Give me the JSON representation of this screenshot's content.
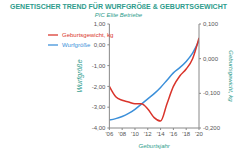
{
  "chart_data": {
    "type": "line",
    "title": "GENETISCHER TREND FÜR WURFGRÖßE & GEBURTSGEWICHT",
    "subtitle": "PIC Elite Betriebe",
    "x_label": "Geburtsjahr",
    "y_label": "Wurfgröße",
    "y2_label": "Geburtsgewicht, kg",
    "x": [
      2006,
      2007,
      2008,
      2009,
      2010,
      2011,
      2012,
      2013,
      2014,
      2015,
      2016,
      2017,
      2018,
      2019,
      2020
    ],
    "xlim": [
      2006,
      2020
    ],
    "xticks": [
      {
        "value": 2006,
        "label": "'06"
      },
      {
        "value": 2008,
        "label": "'08"
      },
      {
        "value": 2010,
        "label": "'10"
      },
      {
        "value": 2012,
        "label": "'12"
      },
      {
        "value": 2014,
        "label": "'14"
      },
      {
        "value": 2016,
        "label": "'16"
      },
      {
        "value": 2018,
        "label": "'18"
      },
      {
        "value": 2020,
        "label": "'20"
      }
    ],
    "ylim": [
      -4,
      1
    ],
    "yticks": [
      {
        "value": -4,
        "label": "-4,00"
      },
      {
        "value": -3,
        "label": "-3,00"
      },
      {
        "value": -2,
        "label": "-2,00"
      },
      {
        "value": -1,
        "label": "-1,00"
      },
      {
        "value": 0,
        "label": "0,00"
      },
      {
        "value": 1,
        "label": "1,00"
      }
    ],
    "y2lim": [
      -0.2,
      0.1
    ],
    "y2ticks": [
      {
        "value": -0.2,
        "label": "-0,200"
      },
      {
        "value": -0.1,
        "label": "-0,100"
      },
      {
        "value": 0,
        "label": "0,000"
      },
      {
        "value": 0.1,
        "label": "0,100"
      }
    ],
    "grid": false,
    "legend": "top-left",
    "series": [
      {
        "name": "Wurfgröße",
        "color": "#3b8fd9",
        "values": [
          -3.62,
          -3.55,
          -3.45,
          -3.3,
          -3.1,
          -2.85,
          -2.6,
          -2.35,
          -2.05,
          -1.7,
          -1.35,
          -1.1,
          -0.8,
          -0.4,
          0.2
        ]
      },
      {
        "name": "Geburtsgewicht, kg",
        "color": "#d9342b",
        "axis": "y2",
        "values": [
          -0.08,
          -0.11,
          -0.12,
          -0.125,
          -0.13,
          -0.13,
          -0.145,
          -0.17,
          -0.18,
          -0.13,
          -0.08,
          -0.05,
          -0.03,
          0.0,
          0.06
        ]
      }
    ]
  }
}
